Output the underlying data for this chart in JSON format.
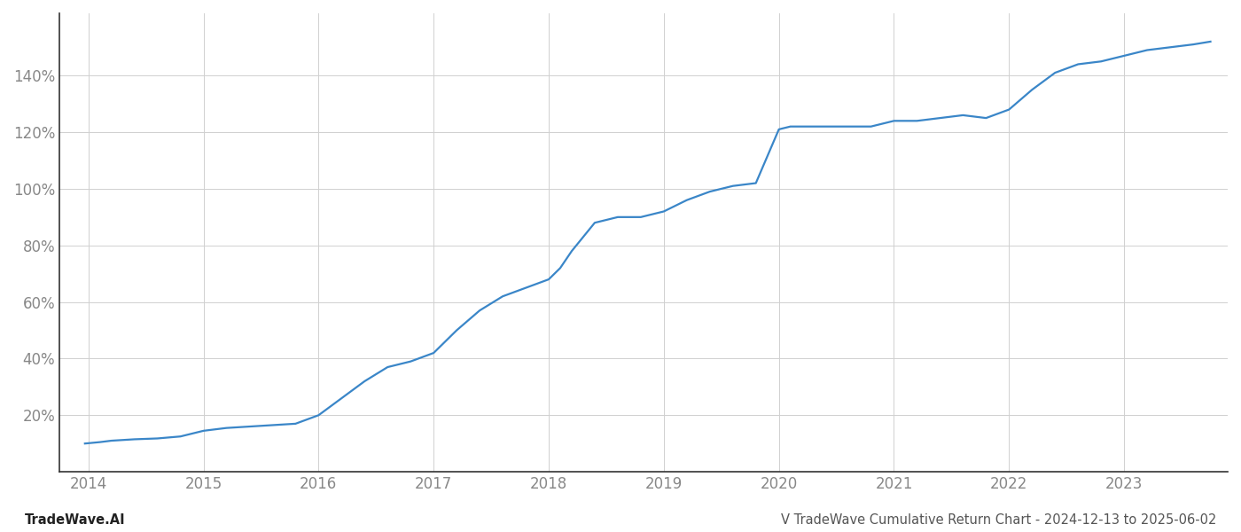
{
  "title": "",
  "footer_left": "TradeWave.AI",
  "footer_right": "V TradeWave Cumulative Return Chart - 2024-12-13 to 2025-06-02",
  "line_color": "#3a86c8",
  "background_color": "#ffffff",
  "grid_color": "#d0d0d0",
  "x_years": [
    2014,
    2015,
    2016,
    2017,
    2018,
    2019,
    2020,
    2021,
    2022,
    2023
  ],
  "x_data": [
    2013.97,
    2014.1,
    2014.2,
    2014.4,
    2014.6,
    2014.8,
    2015.0,
    2015.2,
    2015.4,
    2015.6,
    2015.8,
    2016.0,
    2016.2,
    2016.4,
    2016.6,
    2016.8,
    2017.0,
    2017.2,
    2017.4,
    2017.6,
    2017.8,
    2018.0,
    2018.1,
    2018.2,
    2018.4,
    2018.6,
    2018.8,
    2019.0,
    2019.2,
    2019.4,
    2019.6,
    2019.8,
    2020.0,
    2020.1,
    2020.2,
    2020.4,
    2020.6,
    2020.8,
    2021.0,
    2021.2,
    2021.4,
    2021.6,
    2021.8,
    2022.0,
    2022.2,
    2022.4,
    2022.6,
    2022.8,
    2023.0,
    2023.2,
    2023.4,
    2023.6,
    2023.75
  ],
  "y_data": [
    10,
    10.5,
    11,
    11.5,
    11.8,
    12.5,
    14.5,
    15.5,
    16,
    16.5,
    17,
    20,
    26,
    32,
    37,
    39,
    42,
    50,
    57,
    62,
    65,
    68,
    72,
    78,
    88,
    90,
    90,
    92,
    96,
    99,
    101,
    102,
    121,
    122,
    122,
    122,
    122,
    122,
    124,
    124,
    125,
    126,
    125,
    128,
    135,
    141,
    144,
    145,
    147,
    149,
    150,
    151,
    152
  ],
  "ylim": [
    0,
    162
  ],
  "yticks": [
    20,
    40,
    60,
    80,
    100,
    120,
    140
  ],
  "xlim": [
    2013.75,
    2023.9
  ],
  "line_width": 1.6,
  "footer_fontsize": 10.5,
  "tick_fontsize": 12,
  "tick_color": "#888888",
  "axis_color": "#333333",
  "left_spine_visible": true
}
